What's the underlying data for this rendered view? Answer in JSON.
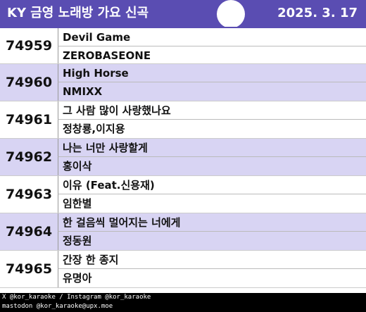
{
  "header": {
    "title": "KY 금영 노래방 가요 신곡",
    "date": "2025. 3. 17"
  },
  "songs": [
    {
      "number": "74959",
      "title": "Devil Game",
      "artist": "ZEROBASEONE"
    },
    {
      "number": "74960",
      "title": "High Horse",
      "artist": "NMIXX"
    },
    {
      "number": "74961",
      "title": "그 사람 많이 사랑했나요",
      "artist": "정창룡,이지용"
    },
    {
      "number": "74962",
      "title": "나는 너만 사랑할게",
      "artist": "홍이삭"
    },
    {
      "number": "74963",
      "title": "이유 (Feat.신용재)",
      "artist": "임한별"
    },
    {
      "number": "74964",
      "title": "한 걸음씩 멀어지는 너에게",
      "artist": "정동원"
    },
    {
      "number": "74965",
      "title": "간장 한 종지",
      "artist": "유명아"
    }
  ],
  "footer": {
    "line1": "X @kor_karaoke / Instagram @kor_karaoke",
    "line2": "mastodon @kor_karaoke@upx.moe"
  },
  "colors": {
    "header_bg": "#5a4db2",
    "alt_row_bg": "#d8d4f3",
    "footer_bg": "#000000"
  }
}
